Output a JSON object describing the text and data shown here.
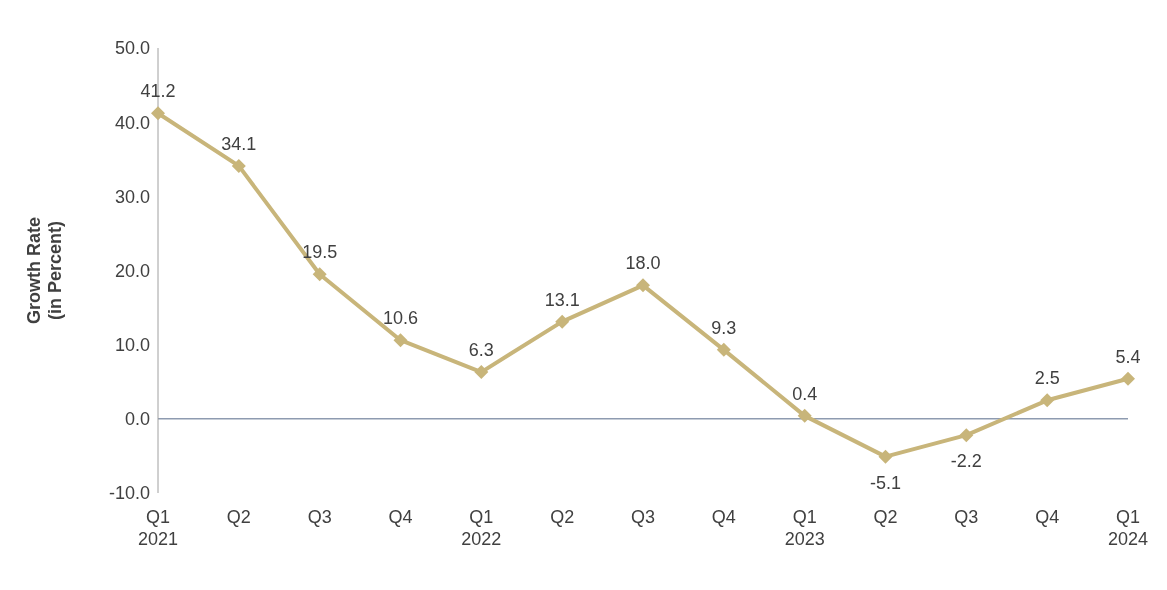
{
  "chart_data": {
    "type": "line",
    "ylabel": "Growth Rate (in Percent)",
    "categories": [
      "Q1 2021",
      "Q2",
      "Q3",
      "Q4",
      "Q1 2022",
      "Q2",
      "Q3",
      "Q4",
      "Q1 2023",
      "Q2",
      "Q3",
      "Q4",
      "Q1 2024"
    ],
    "series": [
      {
        "color": "#c8b57a",
        "values": [
          41.2,
          34.1,
          19.5,
          10.6,
          6.3,
          13.1,
          18.0,
          9.3,
          0.4,
          -5.1,
          -2.2,
          2.5,
          5.4
        ],
        "value_labels": [
          "41.2",
          "34.1",
          "19.5",
          "10.6",
          "6.3",
          "13.1",
          "18.0",
          "9.3",
          "0.4",
          "-5.1",
          "-2.2",
          "2.5",
          "5.4"
        ]
      }
    ],
    "ylim": [
      -10,
      50
    ],
    "yticks": [
      {
        "value": -10,
        "label": "-10.0"
      },
      {
        "value": 0,
        "label": "0.0"
      },
      {
        "value": 10,
        "label": "10.0"
      },
      {
        "value": 20,
        "label": "20.0"
      },
      {
        "value": 30,
        "label": "30.0"
      },
      {
        "value": 40,
        "label": "40.0"
      },
      {
        "value": 50,
        "label": "50.0"
      }
    ],
    "ref_lines": [
      {
        "axis": "y",
        "value": 0,
        "color": "#8e9bb0"
      }
    ],
    "marker": "diamond",
    "line_style": "solid",
    "grid": false,
    "legend": false
  }
}
